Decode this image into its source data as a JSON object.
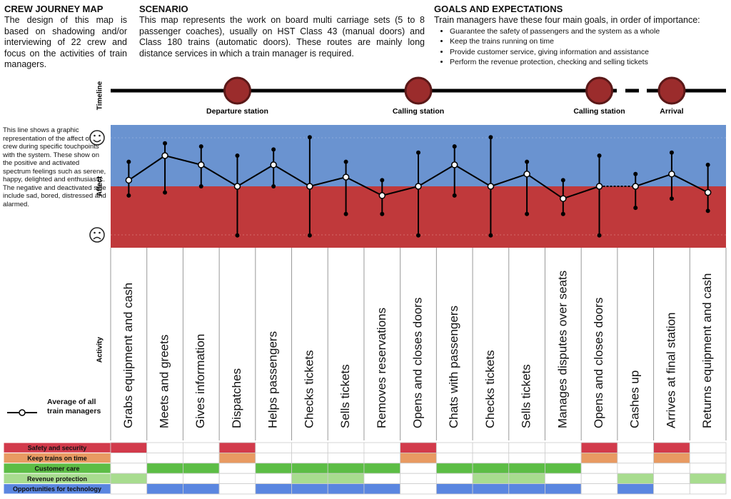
{
  "header": {
    "map": {
      "title": "CREW JOURNEY MAP",
      "text": "The design of this map is based on shadowing and/or interviewing of 22 crew and focus on the activities of train managers."
    },
    "scenario": {
      "title": "SCENARIO",
      "text": "This map represents the work on board multi carriage sets (5 to 8 passenger coaches), usually on HST Class 43 (manual doors) and Class 180 trains (automatic doors). These routes are mainly long distance services in which a train manager is required."
    },
    "goals": {
      "title": "GOALS AND EXPECTATIONS",
      "text": "Train managers have these four main goals, in order of importance:",
      "items": [
        "Guarantee the safety of passengers and the system as a whole",
        "Keep the trains running on time",
        "Provide customer service, giving information and assistance",
        "Perform the revenue protection, checking and selling tickets"
      ]
    }
  },
  "timeline": {
    "label": "Timeline",
    "stations": [
      null,
      null,
      null,
      "Departure station",
      null,
      null,
      null,
      null,
      "Calling station",
      null,
      null,
      null,
      null,
      "Calling station",
      null,
      "Arrival",
      null
    ]
  },
  "affect": {
    "label": "Affect",
    "note": "This line shows a graphic representation of the affect of crew during specific touchpoints with the system. These show on the positive and activated spectrum feelings such as serene, happy, delighted and enthusiastic. The negative and deactivated side include sad, bored, distressed and alarmed.",
    "ylim": [
      -1,
      1
    ],
    "average": [
      0.1,
      0.5,
      0.35,
      0,
      0.35,
      0,
      0.15,
      -0.15,
      0,
      0.35,
      0,
      0.2,
      -0.2,
      0,
      0,
      0.2,
      -0.1
    ],
    "high": [
      0.4,
      0.7,
      0.65,
      0.5,
      0.6,
      0.8,
      0.4,
      0.1,
      0.55,
      0.65,
      0.8,
      0.4,
      0.1,
      0.5,
      0.2,
      0.55,
      0.35
    ],
    "low": [
      -0.15,
      -0.1,
      0,
      -0.8,
      0,
      -0.8,
      -0.45,
      -0.45,
      -0.8,
      -0.15,
      -0.8,
      -0.45,
      -0.45,
      -0.8,
      -0.35,
      -0.2,
      -0.4
    ]
  },
  "activity": {
    "label": "Activity",
    "items": [
      "Grabs equipment and cash",
      "Meets and greets",
      "Gives information",
      "Dispatches",
      "Helps passengers",
      "Checks tickets",
      "Sells tickets",
      "Removes reservations",
      "Opens and closes doors",
      "Chats with passengers",
      "Checks tickets",
      "Sells tickets",
      "Manages disputes over seats",
      "Opens and closes doors",
      "Cashes up",
      "Arrives at final station",
      "Returns equipment and cash"
    ]
  },
  "legend": "Average of all train managers",
  "categories": [
    {
      "name": "Safety and security",
      "color": "#d23a4b",
      "marks": [
        true,
        false,
        false,
        true,
        false,
        false,
        false,
        false,
        true,
        false,
        false,
        false,
        false,
        true,
        false,
        true,
        false
      ]
    },
    {
      "name": "Keep trains on time",
      "color": "#e89a62",
      "marks": [
        false,
        false,
        false,
        true,
        false,
        false,
        false,
        false,
        true,
        false,
        false,
        false,
        false,
        true,
        false,
        true,
        false
      ]
    },
    {
      "name": "Customer care",
      "color": "#5cbd45",
      "marks": [
        false,
        true,
        true,
        false,
        true,
        true,
        true,
        true,
        false,
        true,
        true,
        true,
        true,
        false,
        false,
        false,
        false
      ]
    },
    {
      "name": "Revenue protection",
      "color": "#a8dc8f",
      "marks": [
        true,
        false,
        false,
        false,
        false,
        true,
        true,
        false,
        false,
        false,
        true,
        true,
        false,
        false,
        true,
        false,
        true
      ]
    },
    {
      "name": "Opportunities for technology",
      "color": "#5a86e0",
      "marks": [
        false,
        true,
        true,
        false,
        true,
        true,
        true,
        true,
        false,
        true,
        true,
        true,
        true,
        false,
        true,
        false,
        false
      ]
    }
  ]
}
